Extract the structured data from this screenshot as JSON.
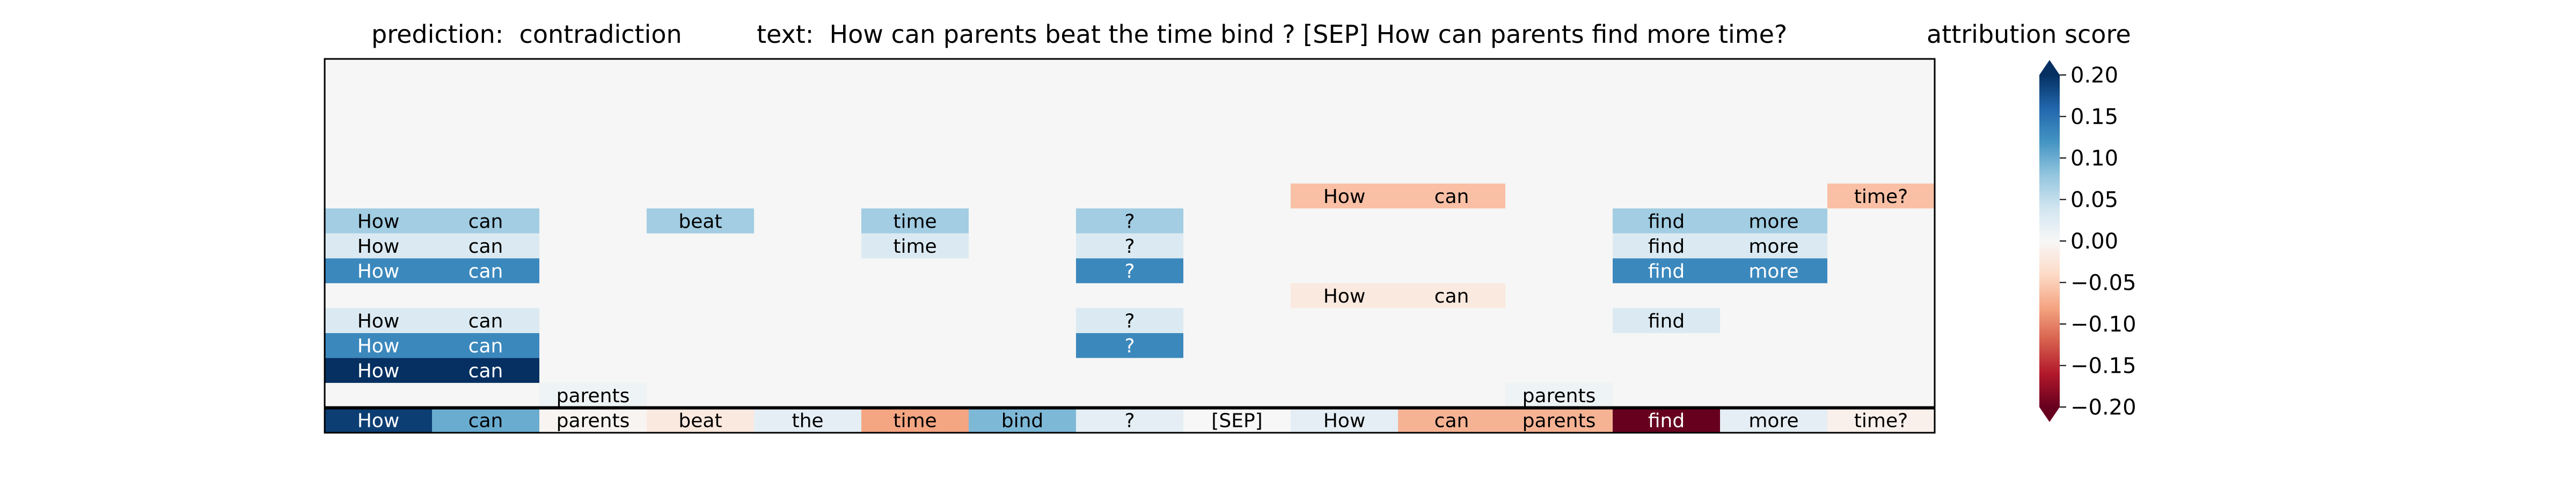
{
  "chart_data": {
    "type": "heatmap",
    "titles": {
      "prediction": "prediction:  contradiction",
      "text": "text:  How can parents beat the time bind ? [SEP] How can parents find more time?",
      "colorbar": "attribution score"
    },
    "tokens": [
      "How",
      "can",
      "parents",
      "beat",
      "the",
      "time",
      "bind",
      "?",
      "[SEP]",
      "How",
      "can",
      "parents",
      "find",
      "more",
      "time?"
    ],
    "n_rows": 15,
    "bottom_row": [
      0.19,
      0.1,
      -0.005,
      -0.02,
      0.02,
      -0.08,
      0.09,
      0.02,
      0.0,
      0.02,
      -0.07,
      -0.07,
      -0.2,
      0.02,
      -0.01
    ],
    "rows": [
      {
        "row": 1,
        "cells": [
          [
            2,
            0.01
          ],
          [
            11,
            0.01
          ]
        ]
      },
      {
        "row": 2,
        "cells": [
          [
            0,
            0.2
          ],
          [
            1,
            0.2
          ]
        ]
      },
      {
        "row": 3,
        "cells": [
          [
            0,
            0.13
          ],
          [
            1,
            0.13
          ],
          [
            7,
            0.13
          ]
        ]
      },
      {
        "row": 4,
        "cells": [
          [
            0,
            0.03
          ],
          [
            1,
            0.03
          ],
          [
            7,
            0.03
          ],
          [
            12,
            0.03
          ]
        ]
      },
      {
        "row": 5,
        "cells": [
          [
            9,
            -0.02
          ],
          [
            10,
            -0.02
          ]
        ]
      },
      {
        "row": 6,
        "cells": [
          [
            0,
            0.13
          ],
          [
            1,
            0.13
          ],
          [
            7,
            0.13
          ],
          [
            12,
            0.13
          ],
          [
            13,
            0.13
          ]
        ]
      },
      {
        "row": 7,
        "cells": [
          [
            0,
            0.03
          ],
          [
            1,
            0.03
          ],
          [
            5,
            0.03
          ],
          [
            7,
            0.03
          ],
          [
            12,
            0.03
          ],
          [
            13,
            0.03
          ]
        ]
      },
      {
        "row": 8,
        "cells": [
          [
            0,
            0.07
          ],
          [
            1,
            0.07
          ],
          [
            3,
            0.07
          ],
          [
            5,
            0.07
          ],
          [
            7,
            0.07
          ],
          [
            12,
            0.07
          ],
          [
            13,
            0.07
          ]
        ]
      },
      {
        "row": 9,
        "cells": [
          [
            9,
            -0.06
          ],
          [
            10,
            -0.06
          ],
          [
            14,
            -0.06
          ]
        ]
      }
    ],
    "colorbar": {
      "min": -0.2,
      "max": 0.2,
      "ticks": [
        0.2,
        0.15,
        0.1,
        0.05,
        0.0,
        -0.05,
        -0.1,
        -0.15,
        -0.2
      ],
      "tick_labels": [
        "0.20",
        "0.15",
        "0.10",
        "0.05",
        "0.00",
        "−0.05",
        "−0.10",
        "−0.15",
        "−0.20"
      ],
      "colormap": "RdBu",
      "extend": "both"
    },
    "colors": {
      "background": "#f5f6f5",
      "separator": "#000000",
      "border": "#000000"
    }
  }
}
